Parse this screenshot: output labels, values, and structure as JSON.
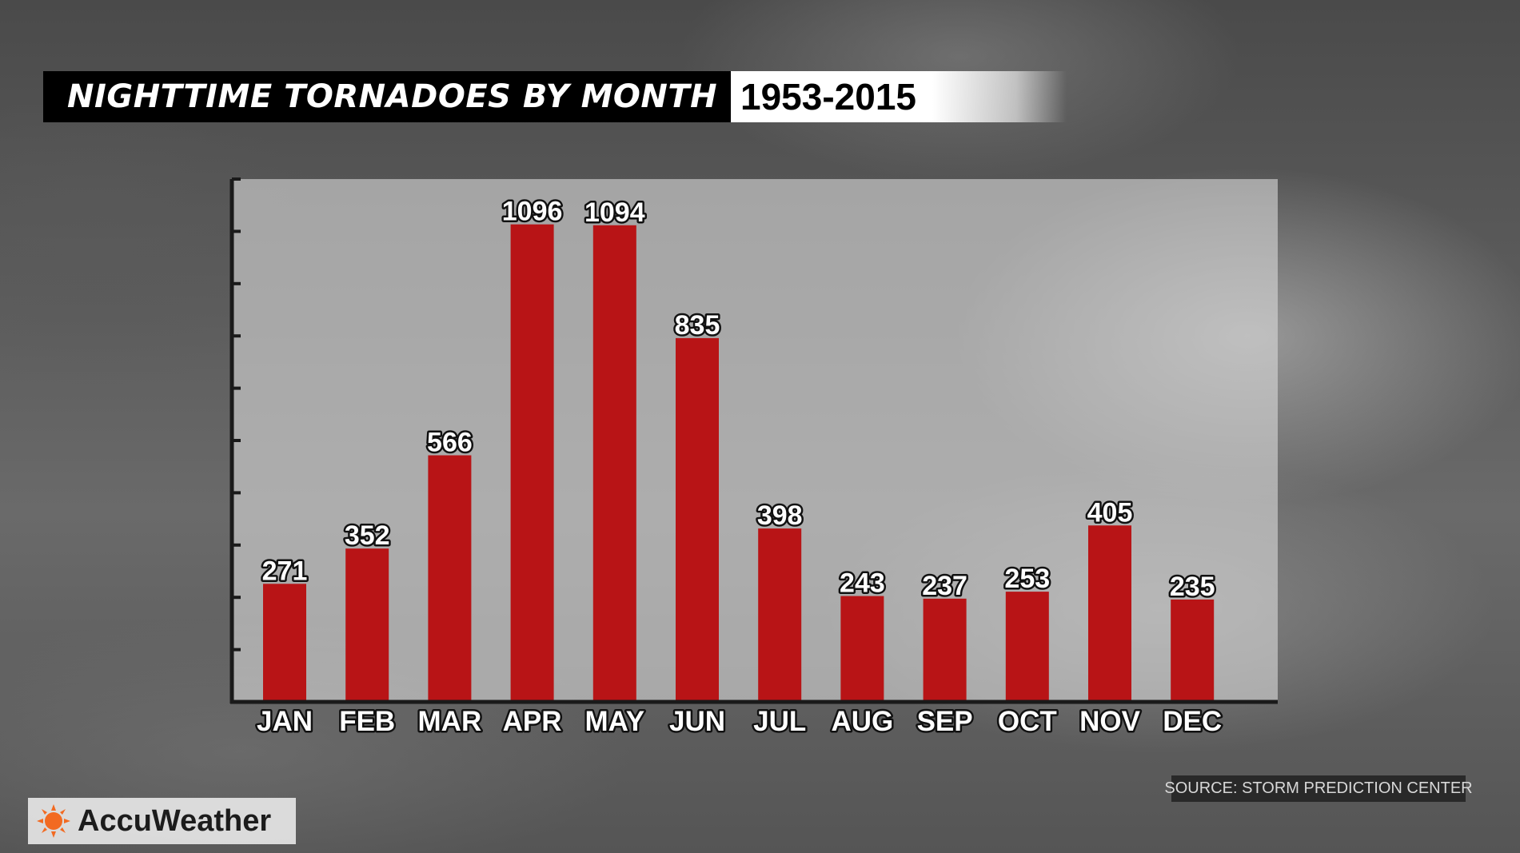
{
  "header": {
    "title": "NIGHTTIME TORNADOES BY MONTH",
    "years": "1953-2015"
  },
  "footer": {
    "source": "SOURCE: STORM PREDICTION CENTER",
    "brand": "AccuWeather"
  },
  "colors": {
    "bar": "#b81416",
    "plot_background": "#d8d8d8",
    "axis": "#1a1a1a"
  },
  "icons": {
    "brand_logo": "sun-icon"
  },
  "chart_data": {
    "type": "bar",
    "title": "NIGHTTIME TORNADOES BY MONTH",
    "subtitle": "1953-2015",
    "categories": [
      "JAN",
      "FEB",
      "MAR",
      "APR",
      "MAY",
      "JUN",
      "JUL",
      "AUG",
      "SEP",
      "OCT",
      "NOV",
      "DEC"
    ],
    "values": [
      271,
      352,
      566,
      1096,
      1094,
      835,
      398,
      243,
      237,
      253,
      405,
      235
    ],
    "xlabel": "",
    "ylabel": "",
    "ylim": [
      0,
      1200
    ],
    "y_tick_count": 10,
    "y_tick_labels_shown": false,
    "data_labels": true,
    "grid": false,
    "legend": "none"
  }
}
